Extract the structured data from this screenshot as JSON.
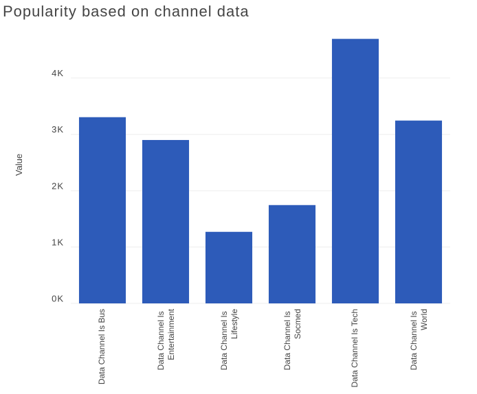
{
  "chart_data": {
    "type": "bar",
    "title": "Popularity based on channel data",
    "y_label": "Value",
    "categories": [
      "Data Channel Is Bus",
      "Data Channel Is Entertainment",
      "Data Channel Is Lifestyle",
      "Data Channel Is Socmed",
      "Data Channel Is Tech",
      "Data Channel Is World"
    ],
    "values": [
      3305,
      2900,
      1270,
      1745,
      4695,
      3245
    ],
    "color": "#2d5bb9",
    "ylim": [
      0,
      4800
    ],
    "yticks": [
      {
        "value": 0,
        "label": "0K"
      },
      {
        "value": 1000,
        "label": "1K"
      },
      {
        "value": 2000,
        "label": "2K"
      },
      {
        "value": 3000,
        "label": "3K"
      },
      {
        "value": 4000,
        "label": "4K"
      }
    ],
    "grid": true
  }
}
